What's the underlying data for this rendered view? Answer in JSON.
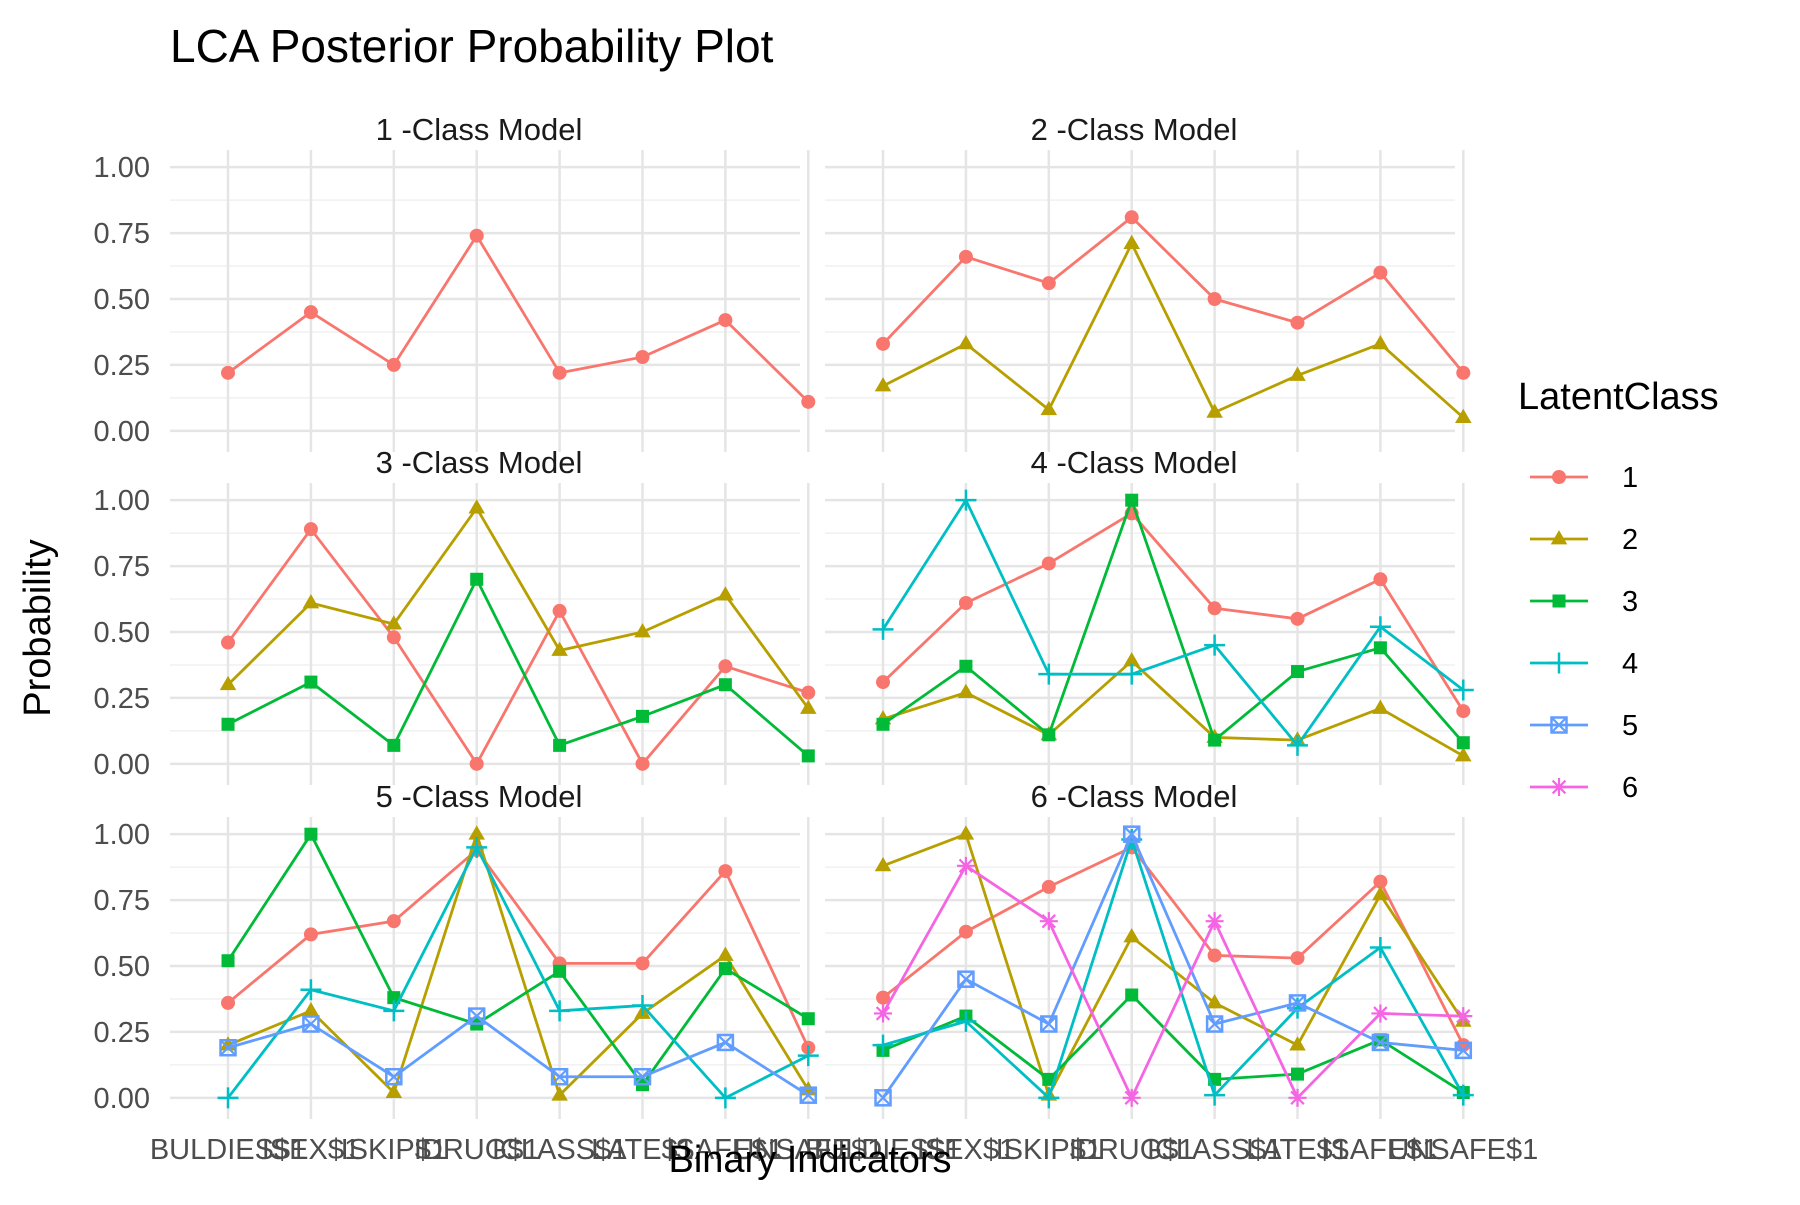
{
  "chart_data": {
    "type": "line",
    "title": "LCA Posterior Probability Plot",
    "xlabel": "Binary Indicators",
    "ylabel": "Probability",
    "ylim": [
      0,
      1
    ],
    "yticks": [
      "0.00",
      "0.25",
      "0.50",
      "0.75",
      "1.00"
    ],
    "categories": [
      "BULDIES$1",
      "ISEX$1",
      "ISKIP$1",
      "IDRUG$1",
      "ICLASS$1",
      "LATE$1",
      "ISAFE$1",
      "UNSAFE$1"
    ],
    "legend": {
      "title": "LatentClass",
      "position": "right",
      "entries": [
        "1",
        "2",
        "3",
        "4",
        "5",
        "6"
      ]
    },
    "grid": true,
    "colors": [
      "#F8766D",
      "#B79F00",
      "#00BA38",
      "#00BFC4",
      "#619CFF",
      "#F564E3"
    ],
    "markers": [
      "circle",
      "triangle",
      "square",
      "plus",
      "boxed-x",
      "asterisk"
    ],
    "panels": [
      {
        "title": "1 -Class Model",
        "series": [
          {
            "name": "1",
            "values": [
              0.22,
              0.45,
              0.25,
              0.74,
              0.22,
              0.28,
              0.42,
              0.11
            ]
          }
        ]
      },
      {
        "title": "2 -Class Model",
        "series": [
          {
            "name": "1",
            "values": [
              0.33,
              0.66,
              0.56,
              0.81,
              0.5,
              0.41,
              0.6,
              0.22
            ]
          },
          {
            "name": "2",
            "values": [
              0.17,
              0.33,
              0.08,
              0.71,
              0.07,
              0.21,
              0.33,
              0.05
            ]
          }
        ]
      },
      {
        "title": "3 -Class Model",
        "series": [
          {
            "name": "1",
            "values": [
              0.46,
              0.89,
              0.48,
              0.0,
              0.58,
              0.0,
              0.37,
              0.27
            ]
          },
          {
            "name": "2",
            "values": [
              0.3,
              0.61,
              0.53,
              0.97,
              0.43,
              0.5,
              0.64,
              0.21
            ]
          },
          {
            "name": "3",
            "values": [
              0.15,
              0.31,
              0.07,
              0.7,
              0.07,
              0.18,
              0.3,
              0.03
            ]
          }
        ]
      },
      {
        "title": "4 -Class Model",
        "series": [
          {
            "name": "1",
            "values": [
              0.31,
              0.61,
              0.76,
              0.95,
              0.59,
              0.55,
              0.7,
              0.2
            ]
          },
          {
            "name": "2",
            "values": [
              0.17,
              0.27,
              0.11,
              0.39,
              0.1,
              0.09,
              0.21,
              0.03
            ]
          },
          {
            "name": "3",
            "values": [
              0.15,
              0.37,
              0.11,
              1.0,
              0.09,
              0.35,
              0.44,
              0.08
            ]
          },
          {
            "name": "4",
            "values": [
              0.51,
              1.0,
              0.34,
              0.34,
              0.45,
              0.07,
              0.52,
              0.28
            ]
          }
        ]
      },
      {
        "title": "5 -Class Model",
        "series": [
          {
            "name": "1",
            "values": [
              0.36,
              0.62,
              0.67,
              0.94,
              0.51,
              0.51,
              0.86,
              0.19
            ]
          },
          {
            "name": "2",
            "values": [
              0.2,
              0.33,
              0.02,
              1.0,
              0.01,
              0.32,
              0.54,
              0.03
            ]
          },
          {
            "name": "3",
            "values": [
              0.52,
              1.0,
              0.38,
              0.28,
              0.48,
              0.05,
              0.49,
              0.3
            ]
          },
          {
            "name": "4",
            "values": [
              0.0,
              0.41,
              0.33,
              0.95,
              0.33,
              0.35,
              0.0,
              0.16
            ]
          },
          {
            "name": "5",
            "values": [
              0.19,
              0.28,
              0.08,
              0.31,
              0.08,
              0.08,
              0.21,
              0.01
            ]
          }
        ]
      },
      {
        "title": "6 -Class Model",
        "series": [
          {
            "name": "1",
            "values": [
              0.38,
              0.63,
              0.8,
              0.95,
              0.54,
              0.53,
              0.82,
              0.2
            ]
          },
          {
            "name": "2",
            "values": [
              0.88,
              1.0,
              0.01,
              0.61,
              0.36,
              0.2,
              0.77,
              0.29
            ]
          },
          {
            "name": "3",
            "values": [
              0.18,
              0.31,
              0.07,
              0.39,
              0.07,
              0.09,
              0.22,
              0.02
            ]
          },
          {
            "name": "4",
            "values": [
              0.2,
              0.29,
              0.0,
              0.98,
              0.01,
              0.34,
              0.57,
              0.01
            ]
          },
          {
            "name": "5",
            "values": [
              0.0,
              0.45,
              0.28,
              1.0,
              0.28,
              0.36,
              0.21,
              0.18
            ]
          },
          {
            "name": "6",
            "values": [
              0.32,
              0.88,
              0.67,
              0.0,
              0.67,
              0.0,
              0.32,
              0.31
            ]
          }
        ]
      }
    ]
  }
}
